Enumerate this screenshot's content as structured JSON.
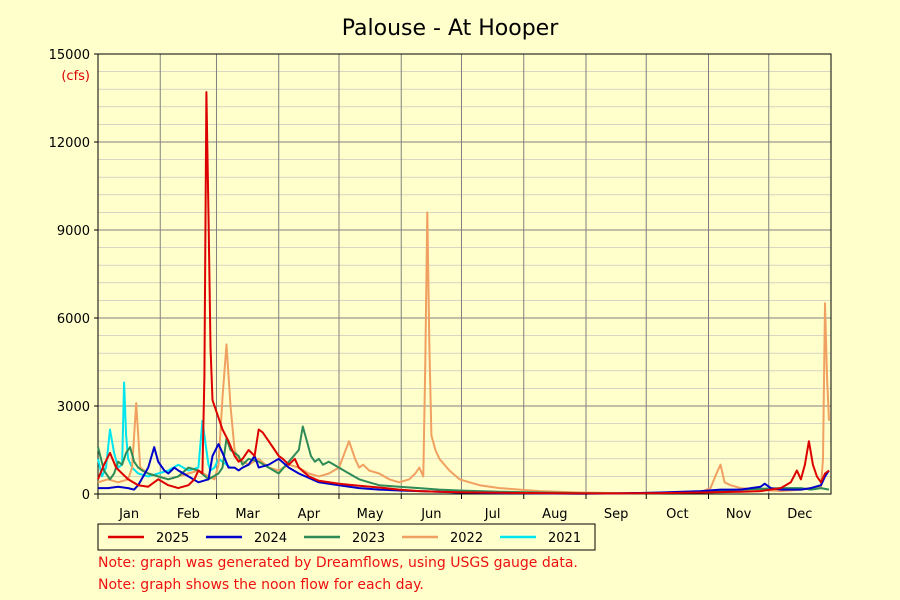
{
  "chart_data": {
    "type": "line",
    "title": "Palouse - At Hooper",
    "ylabel": "(cfs)",
    "xlabel": "",
    "ylim": [
      0,
      15000
    ],
    "xlim": [
      0,
      365
    ],
    "yticks": [
      0,
      3000,
      6000,
      9000,
      12000,
      15000
    ],
    "months": [
      "Jan",
      "Feb",
      "Mar",
      "Apr",
      "May",
      "Jun",
      "Jul",
      "Aug",
      "Sep",
      "Oct",
      "Nov",
      "Dec"
    ],
    "grid": true,
    "legend_position": "bottom-left",
    "series": [
      {
        "name": "2025",
        "color": "#dd0000",
        "x": [
          0,
          3,
          6,
          9,
          12,
          15,
          20,
          25,
          30,
          35,
          40,
          45,
          48,
          50,
          52,
          53,
          54,
          55,
          56,
          57,
          58,
          60,
          62,
          65,
          68,
          70,
          72,
          75,
          78,
          80,
          82,
          85,
          88,
          90,
          92,
          95,
          98,
          100,
          105,
          110,
          120,
          130,
          140,
          150,
          160,
          170,
          180,
          200,
          220,
          240,
          260,
          280,
          300,
          320,
          330,
          340,
          345,
          348,
          350,
          352,
          354,
          356,
          358,
          360,
          362,
          364
        ],
        "y": [
          500,
          1000,
          1400,
          900,
          700,
          500,
          300,
          250,
          500,
          300,
          200,
          300,
          500,
          800,
          700,
          4000,
          13700,
          9500,
          5000,
          3200,
          3000,
          2600,
          2200,
          1800,
          1300,
          1100,
          1200,
          1500,
          1300,
          2200,
          2100,
          1800,
          1500,
          1300,
          1200,
          1000,
          1200,
          900,
          600,
          450,
          350,
          280,
          220,
          150,
          100,
          80,
          60,
          40,
          30,
          20,
          20,
          30,
          50,
          80,
          100,
          200,
          400,
          800,
          500,
          1000,
          1800,
          1000,
          600,
          400,
          700,
          800
        ]
      },
      {
        "name": "2024",
        "color": "#0000cc",
        "x": [
          0,
          5,
          10,
          15,
          18,
          20,
          25,
          28,
          30,
          33,
          35,
          38,
          40,
          45,
          50,
          55,
          57,
          60,
          62,
          65,
          68,
          70,
          72,
          75,
          78,
          80,
          85,
          90,
          95,
          100,
          110,
          120,
          130,
          140,
          150,
          160,
          170,
          180,
          200,
          220,
          240,
          260,
          280,
          300,
          310,
          320,
          330,
          332,
          335,
          340,
          350,
          355,
          360,
          362,
          364
        ],
        "y": [
          200,
          200,
          250,
          200,
          150,
          300,
          900,
          1600,
          1100,
          800,
          700,
          900,
          800,
          600,
          400,
          500,
          1300,
          1700,
          1400,
          900,
          900,
          800,
          900,
          1000,
          1300,
          900,
          1000,
          1200,
          900,
          700,
          400,
          300,
          200,
          150,
          120,
          100,
          80,
          50,
          30,
          20,
          10,
          20,
          50,
          100,
          150,
          150,
          250,
          350,
          200,
          150,
          150,
          200,
          300,
          600,
          800
        ]
      },
      {
        "name": "2023",
        "color": "#2e8b57",
        "x": [
          0,
          3,
          6,
          8,
          10,
          12,
          14,
          16,
          18,
          20,
          22,
          25,
          30,
          35,
          40,
          45,
          50,
          55,
          60,
          62,
          64,
          66,
          70,
          72,
          75,
          80,
          85,
          90,
          95,
          100,
          102,
          104,
          106,
          108,
          110,
          112,
          115,
          120,
          125,
          130,
          135,
          140,
          150,
          160,
          170,
          180,
          200,
          220,
          240,
          260,
          280,
          300,
          320,
          340,
          350,
          355,
          360,
          364
        ],
        "y": [
          1600,
          800,
          500,
          700,
          1100,
          1000,
          1400,
          1600,
          1100,
          900,
          800,
          700,
          600,
          500,
          600,
          900,
          800,
          500,
          700,
          900,
          1900,
          1500,
          1300,
          1000,
          1200,
          1100,
          900,
          700,
          1100,
          1500,
          2300,
          1800,
          1300,
          1100,
          1200,
          1000,
          1100,
          900,
          700,
          500,
          400,
          300,
          250,
          200,
          150,
          120,
          80,
          50,
          30,
          20,
          30,
          80,
          150,
          200,
          200,
          150,
          200,
          150
        ]
      },
      {
        "name": "2022",
        "color": "#f0a060",
        "x": [
          0,
          5,
          10,
          15,
          17,
          19,
          21,
          25,
          30,
          35,
          40,
          45,
          50,
          55,
          58,
          60,
          62,
          64,
          66,
          68,
          70,
          75,
          80,
          85,
          90,
          95,
          100,
          105,
          110,
          115,
          120,
          125,
          128,
          130,
          132,
          135,
          140,
          145,
          150,
          155,
          158,
          160,
          162,
          163,
          164,
          165,
          166,
          168,
          170,
          175,
          180,
          185,
          190,
          200,
          220,
          240,
          260,
          280,
          300,
          305,
          308,
          310,
          312,
          315,
          320,
          330,
          340,
          350,
          355,
          360,
          361,
          362,
          363,
          364
        ],
        "y": [
          400,
          500,
          400,
          500,
          900,
          3100,
          900,
          700,
          600,
          500,
          600,
          700,
          800,
          600,
          500,
          1000,
          3300,
          5100,
          3000,
          1500,
          1200,
          1000,
          1200,
          900,
          800,
          1000,
          900,
          700,
          600,
          700,
          900,
          1800,
          1200,
          900,
          1000,
          800,
          700,
          500,
          400,
          500,
          700,
          900,
          600,
          4500,
          9600,
          5000,
          2000,
          1500,
          1200,
          800,
          500,
          400,
          300,
          200,
          100,
          50,
          30,
          40,
          60,
          200,
          700,
          1000,
          400,
          300,
          200,
          150,
          100,
          150,
          200,
          250,
          1200,
          6500,
          4000,
          2500
        ]
      },
      {
        "name": "2021",
        "color": "#00e5ee",
        "x": [
          0,
          2,
          4,
          6,
          8,
          10,
          12,
          13,
          14,
          15,
          17,
          20,
          25,
          30,
          35,
          40,
          45,
          50,
          52,
          54,
          55,
          56,
          58,
          60,
          62,
          64,
          66
        ],
        "y": [
          1200,
          600,
          900,
          2200,
          1400,
          900,
          1000,
          3800,
          2000,
          1200,
          900,
          700,
          600,
          700,
          800,
          1000,
          800,
          900,
          2500,
          1500,
          1000,
          800,
          900,
          1200,
          1100,
          1000,
          900
        ]
      }
    ]
  },
  "notes": {
    "line1": "Note: graph was generated by Dreamflows, using USGS gauge data.",
    "line2": "Note: graph shows the noon flow for each day."
  }
}
